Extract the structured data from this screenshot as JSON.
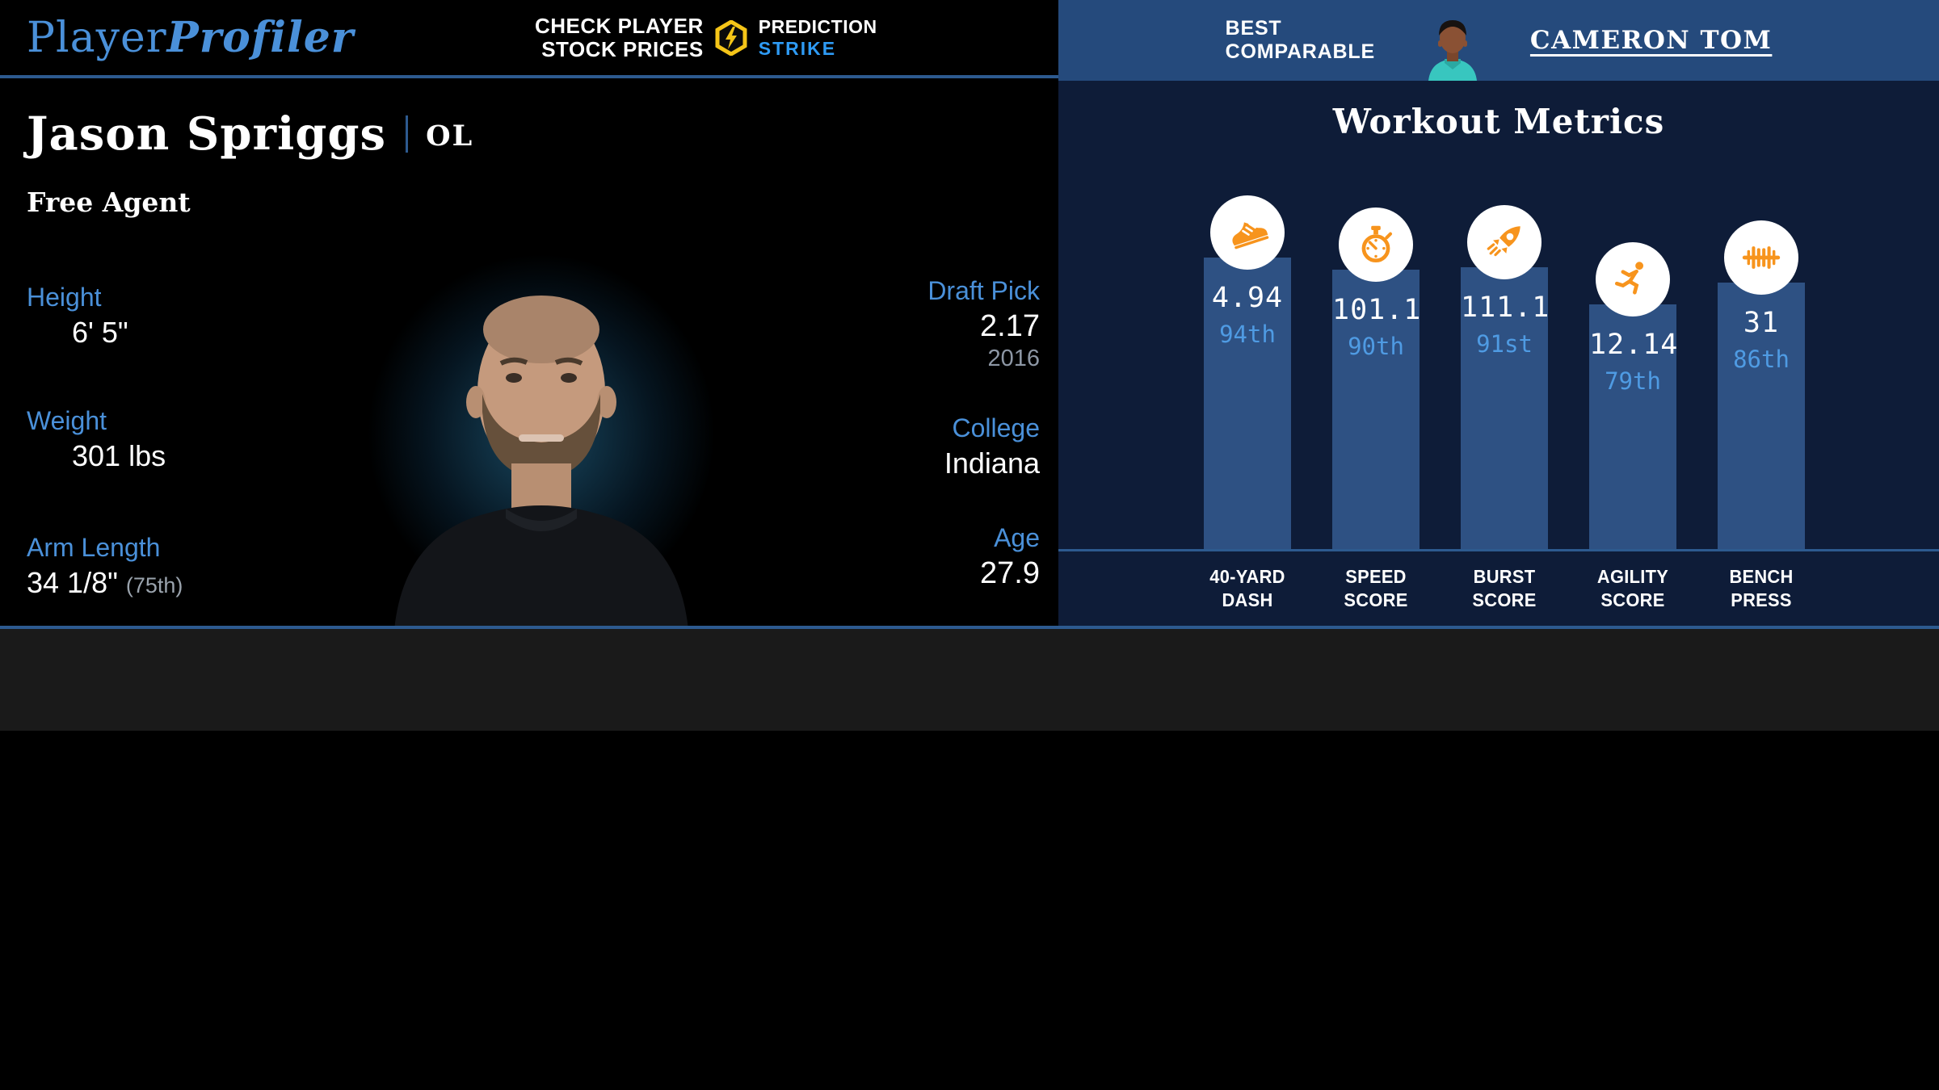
{
  "header": {
    "logo": {
      "part1": "Player",
      "part2": "Profiler"
    },
    "promo": {
      "line1": "CHECK PLAYER",
      "line2": "STOCK PRICES",
      "brand_top": "PREDICTION",
      "brand_bottom": "STRIKE"
    },
    "comparable": {
      "label_line1": "BEST",
      "label_line2": "COMPARABLE",
      "player": "CAMERON TOM"
    }
  },
  "player": {
    "name": "Jason Spriggs",
    "position": "OL",
    "team": "Free Agent",
    "stats_left": [
      {
        "label": "Height",
        "value": "6' 5\""
      },
      {
        "label": "Weight",
        "value": "301 lbs"
      },
      {
        "label": "Arm Length",
        "value": "34 1/8\"",
        "note": "(75th)"
      }
    ],
    "stats_right": [
      {
        "label": "Draft Pick",
        "value": "2.17",
        "sub": "2016"
      },
      {
        "label": "College",
        "value": "Indiana"
      },
      {
        "label": "Age",
        "value": "27.9"
      }
    ]
  },
  "chart_data": {
    "type": "bar",
    "title": "Workout Metrics",
    "categories": [
      "40-YARD DASH",
      "SPEED SCORE",
      "BURST SCORE",
      "AGILITY SCORE",
      "BENCH PRESS"
    ],
    "values": [
      4.94,
      101.1,
      111.1,
      12.14,
      31
    ],
    "percentiles": [
      94,
      90,
      91,
      79,
      86
    ],
    "percentile_labels": [
      "94th",
      "90th",
      "91st",
      "79th",
      "86th"
    ],
    "icons": [
      "shoe-icon",
      "stopwatch-icon",
      "rocket-icon",
      "runner-icon",
      "barbell-icon"
    ],
    "ylabel": "percentile",
    "ylim": [
      0,
      100
    ],
    "grid": false,
    "legend": "none",
    "bar_color": "#2e5183",
    "value_color": "#ffffff",
    "percentile_color": "#4f9be3",
    "icon_color": "#f7941d"
  },
  "colors": {
    "accent_blue": "#4a90d9",
    "bar_blue": "#2e5183",
    "pct_blue": "#4f9be3",
    "panel_navy": "#0e1c38",
    "header_blue": "#254a7c",
    "divider_blue": "#2d5a8f",
    "orange": "#f7941d",
    "strike_blue": "#2e9bf5",
    "muted_gray": "#8d97a5"
  }
}
